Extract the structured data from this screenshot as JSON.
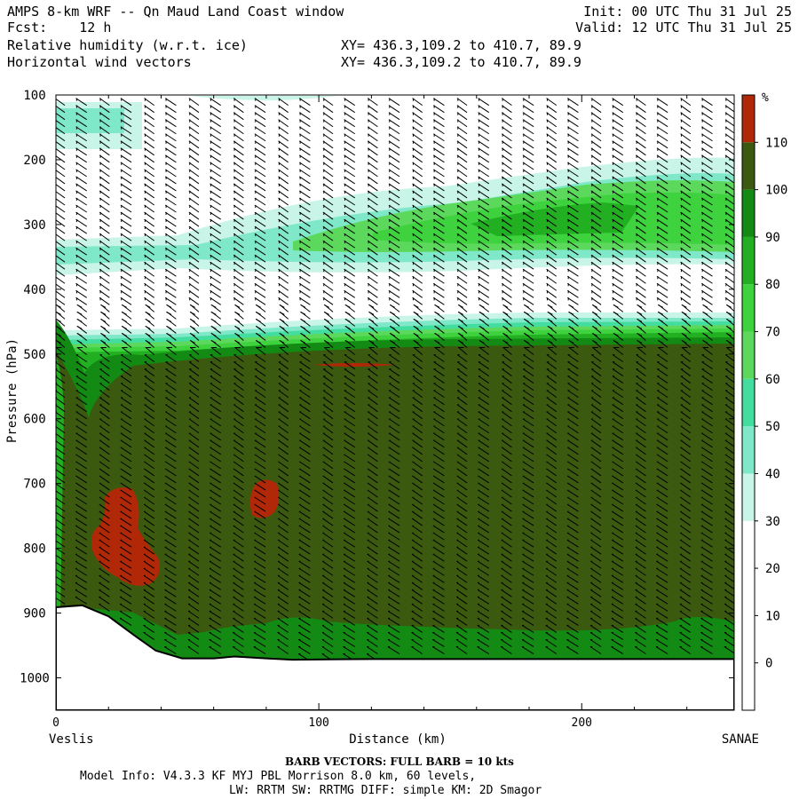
{
  "header": {
    "title_left": "AMPS 8-km WRF -- Qn Maud Land Coast window",
    "fcst_label": "Fcst:",
    "fcst_value": "12 h",
    "field1": "Relative humidity (w.r.t. ice)",
    "field2": "Horizontal wind vectors",
    "xy1": "XY= 436.3,109.2 to 410.7, 89.9",
    "xy2": "XY= 436.3,109.2 to 410.7, 89.9",
    "init": "Init: 00 UTC Thu 31 Jul 25",
    "valid": "Valid: 12 UTC Thu 31 Jul 25"
  },
  "footer": {
    "left_endpoint": "Veslis",
    "right_endpoint": "SANAE",
    "barb_note": "BARB VECTORS:  FULL BARB = 10 kts",
    "model_info": "Model Info: V4.3.3   KF      MYJ PBL  Morrison          8.0 km,  60 levels,",
    "physics": "LW: RRTM SW: RRTMG   DIFF: simple KM: 2D Smagor"
  },
  "chart_data": {
    "type": "heatmap",
    "title": "Relative humidity (w.r.t. ice)",
    "xlabel": "Distance (km)",
    "ylabel": "Pressure (hPa)",
    "xlim": [
      0,
      258
    ],
    "ylim": [
      1050,
      100
    ],
    "x_ticks": [
      0,
      100,
      200
    ],
    "y_ticks": [
      100,
      200,
      300,
      400,
      500,
      600,
      700,
      800,
      900,
      1000
    ],
    "colorbar": {
      "unit": "%",
      "levels": [
        0,
        10,
        20,
        30,
        40,
        50,
        60,
        70,
        80,
        90,
        100,
        110
      ],
      "colors": [
        "#ffffff",
        "#ffffff",
        "#ffffff",
        "#c8f5e8",
        "#7fe8c8",
        "#44dda0",
        "#5cd95c",
        "#3ed23e",
        "#22b022",
        "#138a13",
        "#3b5a0f",
        "#b02808"
      ]
    },
    "terrain": [
      {
        "x": 0,
        "p": 891
      },
      {
        "x": 10,
        "p": 888
      },
      {
        "x": 20,
        "p": 905
      },
      {
        "x": 30,
        "p": 935
      },
      {
        "x": 38,
        "p": 958
      },
      {
        "x": 48,
        "p": 970
      },
      {
        "x": 60,
        "p": 970
      },
      {
        "x": 68,
        "p": 967
      },
      {
        "x": 80,
        "p": 970
      },
      {
        "x": 90,
        "p": 972
      },
      {
        "x": 120,
        "p": 971
      },
      {
        "x": 200,
        "p": 971
      },
      {
        "x": 258,
        "p": 971
      }
    ],
    "regions": [
      {
        "name": "lower-saturated-layer",
        "rh": 105
      },
      {
        "name": "upper-moist-band-270hPa",
        "rh": 85
      },
      {
        "name": "supersaturated-pocket-780hPa",
        "rh": 112
      },
      {
        "name": "supersaturated-pocket-720hPa",
        "rh": 112
      },
      {
        "name": "supersaturated-streak-515hPa",
        "rh": 112
      }
    ],
    "barb_columns_km": [
      0,
      8,
      17,
      25,
      34,
      42,
      51,
      59,
      68,
      76,
      85,
      93,
      102,
      110,
      119,
      127,
      136,
      144,
      153,
      161,
      170,
      178,
      187,
      195,
      204,
      212,
      221,
      229,
      238,
      246,
      255
    ]
  }
}
